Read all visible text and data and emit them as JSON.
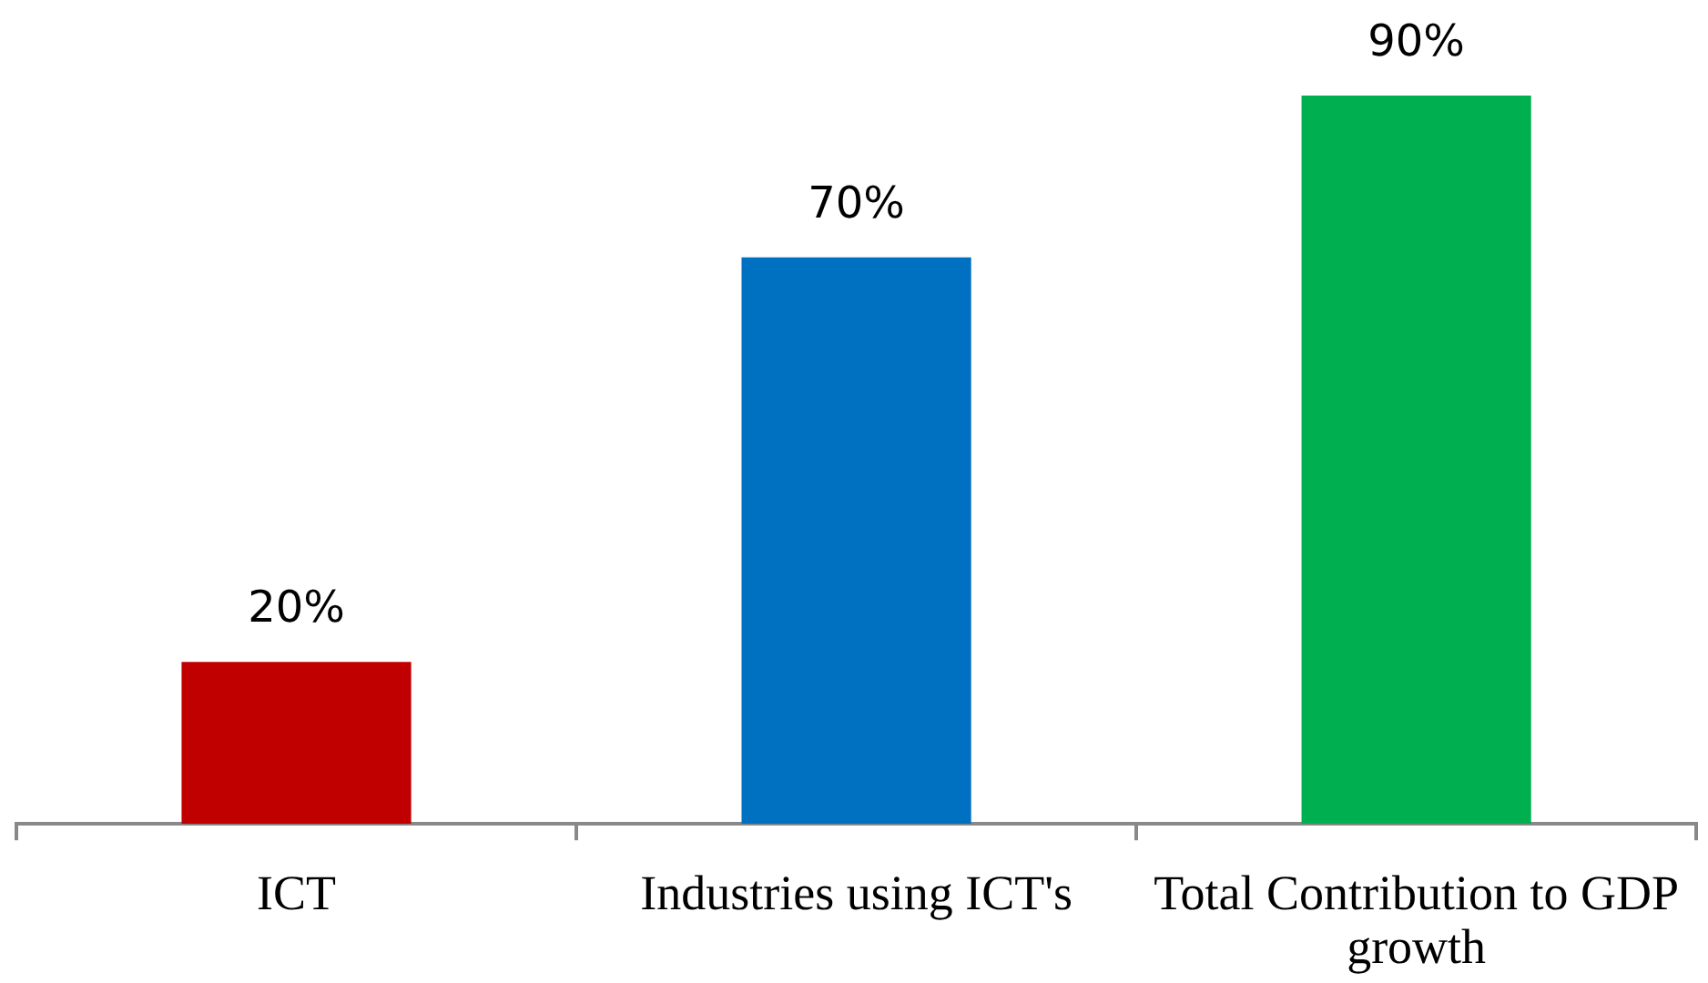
{
  "chart_data": {
    "type": "bar",
    "categories": [
      "ICT",
      "Industries using ICT's",
      "Total Contribution to GDP growth"
    ],
    "values": [
      20,
      70,
      90
    ],
    "colors": [
      "#c00000",
      "#0070c0",
      "#00b050"
    ],
    "value_labels": [
      "20%",
      "70%",
      "90%"
    ],
    "tick_labels": "x"
  }
}
